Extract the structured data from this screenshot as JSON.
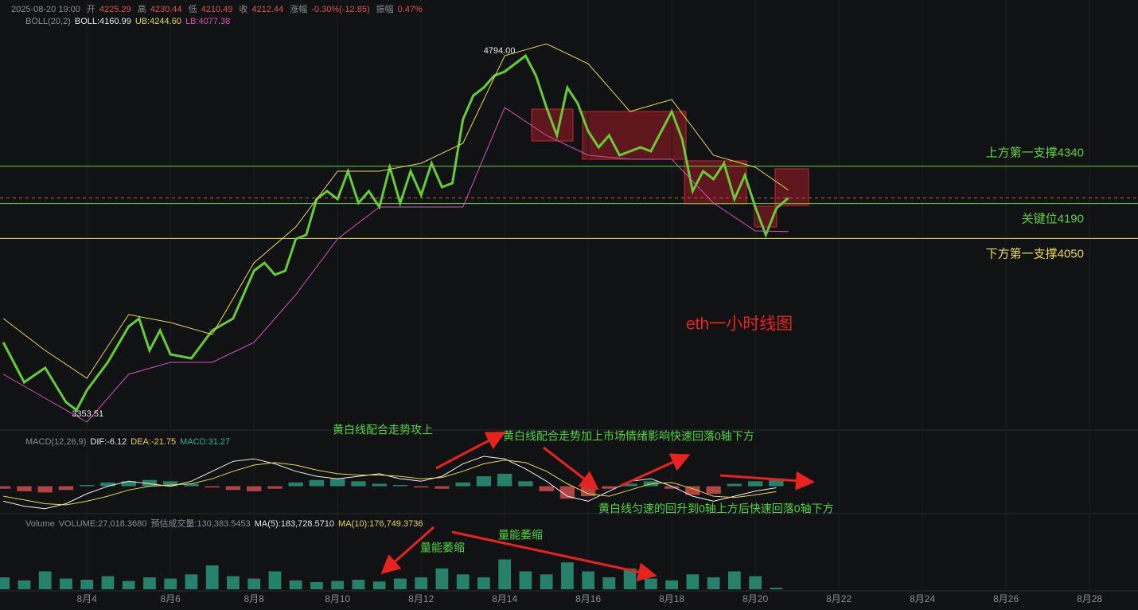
{
  "header": {
    "time": "2025-08-20 19:00",
    "ohlc": [
      {
        "label": "开",
        "value": 4225.29
      },
      {
        "label": "高",
        "value": 4230.44
      },
      {
        "label": "低",
        "value": 4210.49
      },
      {
        "label": "收",
        "value": 4212.44
      }
    ],
    "change_label": "涨幅",
    "change": "-0.30%(-12.85)",
    "amplitude_label": "振幅",
    "amplitude": "0.47%",
    "boll": [
      "BOLL(20,2)",
      "BOLL:4160.99",
      "UB:4244.60",
      "LB:4077.38"
    ],
    "macd": [
      "MACD(12,26,9)",
      "DIF:-6.12",
      "DEA:-21.75",
      "MACD:31.27"
    ],
    "volume": [
      "Volume",
      "VOLUME:27,018.3680",
      "预估成交量:130,383.5453",
      "MA(5):183,728.5710",
      "MA(10):176,749.3736"
    ]
  },
  "chart_label": "eth一小时线图",
  "notes": [
    "黄白线配合走势攻上",
    "黄白线配合走势加上市场情绪影响快速回落0轴下方",
    "黄白线匀速的回升到0轴上方后快速回落0轴下方",
    "量能萎缩",
    "量能萎缩"
  ],
  "chart_data": [
    {
      "type": "line",
      "xlim": [
        1.92,
        29.16
      ],
      "ylim": [
        3280,
        5008
      ],
      "xticks": [
        {
          "value": 4,
          "label": "8月4"
        },
        {
          "value": 6,
          "label": "8月6"
        },
        {
          "value": 8,
          "label": "8月8"
        },
        {
          "value": 10,
          "label": "8月10"
        },
        {
          "value": 12,
          "label": "8月12"
        },
        {
          "value": 14,
          "label": "8月14"
        },
        {
          "value": 16,
          "label": "8月16"
        },
        {
          "value": 18,
          "label": "8月18"
        },
        {
          "value": 20,
          "label": "8月20"
        },
        {
          "value": 22,
          "label": "8月22"
        },
        {
          "value": 24,
          "label": "8月24"
        },
        {
          "value": 26,
          "label": "8月26"
        },
        {
          "value": 28,
          "label": "8月28"
        }
      ],
      "x": [
        2,
        2.5,
        3,
        3.5,
        3.75,
        4,
        4.5,
        5,
        5.25,
        5.5,
        5.75,
        6,
        6.5,
        7,
        7.5,
        8,
        8.25,
        8.5,
        8.75,
        9,
        9.25,
        9.5,
        9.75,
        10,
        10.25,
        10.5,
        10.75,
        11,
        11.25,
        11.5,
        11.75,
        12,
        12.25,
        12.5,
        12.75,
        13,
        13.25,
        13.5,
        13.75,
        14,
        14.25,
        14.5,
        14.75,
        15,
        15.25,
        15.5,
        15.75,
        16,
        16.25,
        16.5,
        16.75,
        17,
        17.25,
        17.5,
        17.75,
        18,
        18.25,
        18.5,
        18.75,
        19,
        19.25,
        19.5,
        19.75,
        20,
        20.25,
        20.5,
        20.79
      ],
      "series": [
        {
          "color": "#66cc33",
          "values": [
            3632,
            3472,
            3530,
            3392,
            3360,
            3440,
            3552,
            3696,
            3728,
            3600,
            3680,
            3584,
            3568,
            3680,
            3728,
            3920,
            3952,
            3904,
            3920,
            4048,
            4064,
            4208,
            4240,
            4208,
            4320,
            4192,
            4240,
            4176,
            4336,
            4192,
            4320,
            4224,
            4352,
            4256,
            4272,
            4528,
            4624,
            4656,
            4704,
            4720,
            4752,
            4784,
            4704,
            4576,
            4464,
            4656,
            4592,
            4480,
            4416,
            4464,
            4384,
            4400,
            4416,
            4400,
            4480,
            4560,
            4448,
            4240,
            4320,
            4288,
            4352,
            4208,
            4304,
            4176,
            4064,
            4170,
            4212.44
          ]
        },
        {
          "color": "#e6d94a",
          "x": [
            2,
            3,
            4,
            5,
            6,
            7,
            8,
            9,
            10,
            11,
            12,
            13,
            14,
            15,
            16,
            17,
            18,
            19,
            20,
            20.79
          ],
          "values": [
            3728,
            3600,
            3488,
            3744,
            3712,
            3664,
            3952,
            4096,
            4320,
            4320,
            4352,
            4432,
            4784,
            4832,
            4752,
            4560,
            4608,
            4384,
            4336,
            4244.6
          ]
        },
        {
          "color": "#d653b4",
          "x": [
            2,
            3,
            4,
            5,
            6,
            7,
            8,
            9,
            10,
            11,
            12,
            13,
            14,
            15,
            16,
            17,
            18,
            19,
            20,
            20.79
          ],
          "values": [
            3504,
            3408,
            3312,
            3504,
            3552,
            3552,
            3632,
            3824,
            4048,
            4176,
            4176,
            4176,
            4576,
            4464,
            4384,
            4368,
            4368,
            4192,
            4080,
            4077.38
          ]
        }
      ],
      "hlines": [
        {
          "value": 4340,
          "label": "上方第一支撑4340",
          "color": "#5fd33a"
        },
        {
          "value": 4190,
          "label": "关键位4190",
          "color": "#5fd33a"
        },
        {
          "value": 4050,
          "label": "下方第一支撑4050",
          "color": "#e8d84a"
        }
      ],
      "price_line": 4212.44,
      "extremes": [
        {
          "x": 14.52,
          "value": 4794,
          "label": "4794.00"
        },
        {
          "x": 3.45,
          "value": 3353.51,
          "label": "3353.51"
        }
      ]
    },
    {
      "type": "macd",
      "xlim": [
        1.92,
        29.16
      ],
      "ylim": [
        -110,
        200
      ],
      "up_color": "#2a9d7f",
      "down_color": "#d9534f",
      "x": [
        2,
        2.5,
        3,
        3.5,
        4,
        4.5,
        5,
        5.5,
        6,
        6.5,
        7,
        7.5,
        8,
        8.5,
        9,
        9.5,
        10,
        10.5,
        11,
        11.5,
        12,
        12.5,
        13,
        13.5,
        14,
        14.5,
        15,
        15.5,
        16,
        16.5,
        17,
        17.5,
        18,
        18.5,
        19,
        19.5,
        20,
        20.5
      ],
      "values": [
        -10,
        -20,
        -25,
        -15,
        5,
        15,
        20,
        25,
        20,
        10,
        -5,
        -15,
        -20,
        -10,
        15,
        25,
        30,
        20,
        10,
        5,
        -5,
        -10,
        15,
        40,
        50,
        20,
        -20,
        -50,
        -40,
        -10,
        10,
        20,
        -10,
        -35,
        -30,
        10,
        20,
        31.27
      ],
      "series": [
        {
          "color": "#f0f0f0",
          "values": [
            -60,
            -80,
            -90,
            -70,
            -30,
            0,
            20,
            10,
            0,
            20,
            60,
            100,
            110,
            90,
            60,
            40,
            30,
            40,
            50,
            30,
            20,
            40,
            90,
            120,
            110,
            70,
            20,
            -40,
            -60,
            -20,
            20,
            30,
            0,
            -40,
            -60,
            -40,
            -20,
            -6.12
          ]
        },
        {
          "color": "#e6d94a",
          "values": [
            -40,
            -55,
            -70,
            -75,
            -60,
            -40,
            -15,
            0,
            5,
            10,
            30,
            60,
            85,
            95,
            85,
            65,
            50,
            45,
            45,
            40,
            30,
            35,
            60,
            90,
            105,
            95,
            60,
            10,
            -30,
            -40,
            -15,
            10,
            15,
            -10,
            -40,
            -45,
            -35,
            -21.75
          ]
        }
      ]
    },
    {
      "type": "bar",
      "xlim": [
        1.92,
        29.16
      ],
      "ylim": [
        0,
        1000000
      ],
      "color": "#2a9d7f",
      "x": [
        2,
        2.5,
        3,
        3.5,
        4,
        4.5,
        5,
        5.5,
        6,
        6.5,
        7,
        7.5,
        8,
        8.5,
        9,
        9.5,
        10,
        10.5,
        11,
        11.5,
        12,
        12.5,
        13,
        13.5,
        14,
        14.5,
        15,
        15.5,
        16,
        16.5,
        17,
        17.5,
        18,
        18.5,
        19,
        19.5,
        20,
        20.5
      ],
      "values": [
        200000,
        150000,
        300000,
        180000,
        160000,
        220000,
        140000,
        200000,
        180000,
        250000,
        400000,
        220000,
        180000,
        300000,
        150000,
        120000,
        140000,
        160000,
        130000,
        180000,
        200000,
        350000,
        250000,
        200000,
        500000,
        300000,
        250000,
        450000,
        300000,
        200000,
        350000,
        180000,
        150000,
        250000,
        200000,
        300000,
        220000,
        27018.368
      ]
    }
  ]
}
